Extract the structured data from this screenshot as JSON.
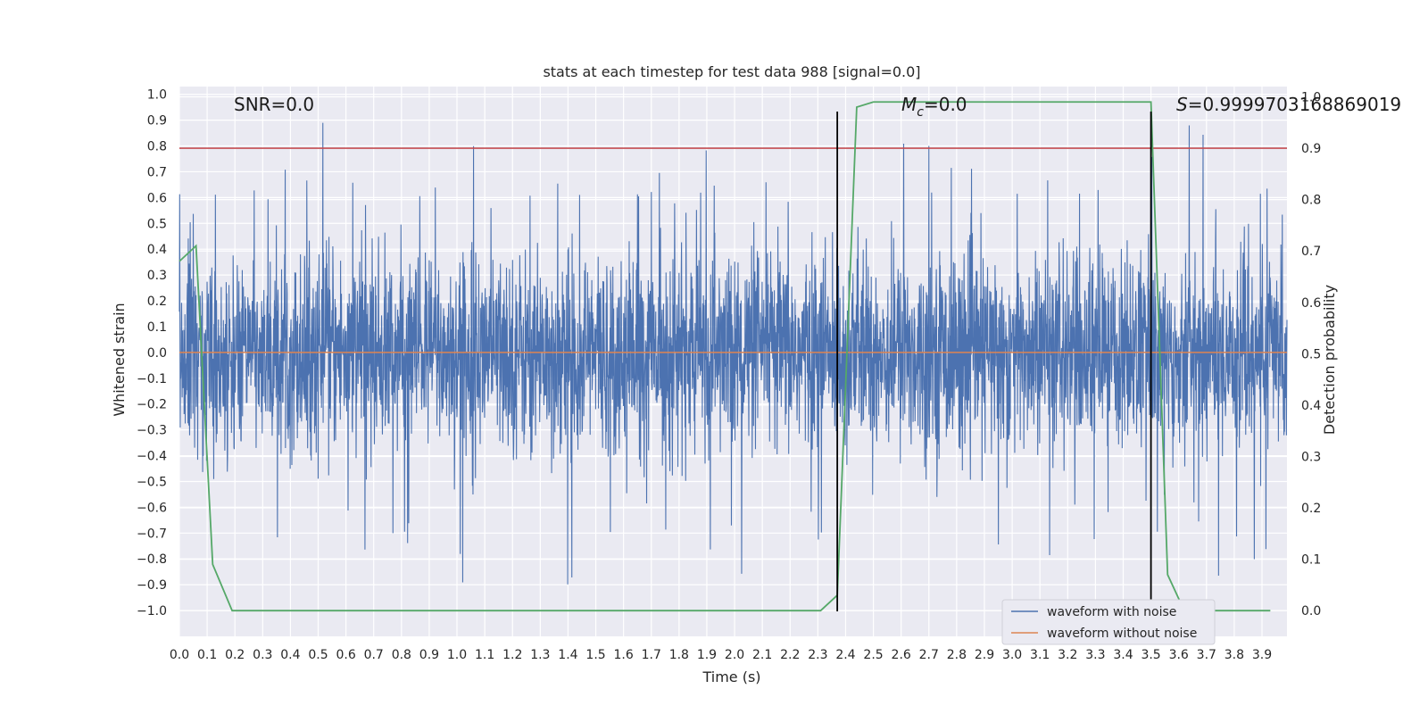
{
  "chart_data": {
    "type": "line",
    "title": "stats at each timestep for test data 988 [signal=0.0]",
    "xlabel": "Time (s)",
    "ylabel": "Whitened strain",
    "y2label": "Detection probability",
    "xlim": [
      0.0,
      3.99
    ],
    "ylim": [
      -1.1,
      1.03
    ],
    "y2lim": [
      -0.05,
      1.02
    ],
    "x_ticks": [
      "0.0",
      "0.1",
      "0.2",
      "0.3",
      "0.4",
      "0.5",
      "0.6",
      "0.7",
      "0.8",
      "0.9",
      "1.0",
      "1.1",
      "1.2",
      "1.3",
      "1.4",
      "1.5",
      "1.6",
      "1.7",
      "1.8",
      "1.9",
      "2.0",
      "2.1",
      "2.2",
      "2.3",
      "2.4",
      "2.5",
      "2.6",
      "2.7",
      "2.8",
      "2.9",
      "3.0",
      "3.1",
      "3.2",
      "3.3",
      "3.4",
      "3.5",
      "3.6",
      "3.7",
      "3.8",
      "3.9"
    ],
    "y_ticks": [
      "1.0",
      "0.9",
      "0.8",
      "0.7",
      "0.6",
      "0.5",
      "0.4",
      "0.3",
      "0.2",
      "0.1",
      "0.0",
      "−0.1",
      "−0.2",
      "−0.3",
      "−0.4",
      "−0.5",
      "−0.6",
      "−0.7",
      "−0.8",
      "−0.9",
      "−1.0"
    ],
    "y2_ticks": [
      "1.0",
      "0.9",
      "0.8",
      "0.7",
      "0.6",
      "0.5",
      "0.4",
      "0.3",
      "0.2",
      "0.1",
      "0.0"
    ],
    "annotations": {
      "snr": "SNR=0.0",
      "mc_symbol": "M",
      "mc_sub": "c",
      "mc_value": "=0.0",
      "s_symbol": "S",
      "s_value": "=0.9999703168869019"
    },
    "threshold_line": {
      "axis": "right",
      "value": 0.9,
      "color": "#c44e52"
    },
    "zero_line": {
      "axis": "left",
      "value": 0.0,
      "color": "#dd8452"
    },
    "vertical_lines": [
      2.37,
      3.5
    ],
    "series": [
      {
        "name": "waveform with noise",
        "color": "#4c72b0",
        "axis": "left",
        "style": "dense-noise",
        "amplitude": 0.3,
        "x_start": 0.0,
        "x_end": 3.99
      },
      {
        "name": "waveform without noise",
        "color": "#dd8452",
        "axis": "left",
        "x": [
          0.0,
          3.99
        ],
        "y": [
          0.0,
          0.0
        ]
      },
      {
        "name": "",
        "color": "#55a868",
        "axis": "right",
        "x": [
          0.0,
          0.06,
          0.12,
          0.19,
          0.25,
          0.31,
          0.37,
          0.44,
          0.5,
          0.56,
          0.62,
          0.69,
          0.75,
          0.81,
          0.87,
          0.94,
          1.0,
          1.06,
          1.12,
          1.19,
          1.25,
          1.31,
          1.37,
          1.44,
          1.5,
          1.56,
          1.62,
          1.69,
          1.75,
          1.81,
          1.87,
          1.94,
          2.0,
          2.06,
          2.12,
          2.19,
          2.25,
          2.31,
          2.37,
          2.44,
          2.5,
          2.56,
          2.62,
          2.69,
          2.75,
          2.81,
          2.87,
          2.94,
          3.0,
          3.06,
          3.12,
          3.19,
          3.25,
          3.31,
          3.37,
          3.44,
          3.5,
          3.56,
          3.62,
          3.69,
          3.75,
          3.81,
          3.87,
          3.93
        ],
        "y": [
          0.68,
          0.71,
          0.09,
          0.0,
          0.0,
          0.0,
          0.0,
          0.0,
          0.0,
          0.0,
          0.0,
          0.0,
          0.0,
          0.0,
          0.0,
          0.0,
          0.0,
          0.0,
          0.0,
          0.0,
          0.0,
          0.0,
          0.0,
          0.0,
          0.0,
          0.0,
          0.0,
          0.0,
          0.0,
          0.0,
          0.0,
          0.0,
          0.0,
          0.0,
          0.0,
          0.0,
          0.0,
          0.0,
          0.03,
          0.98,
          0.99,
          0.99,
          0.99,
          0.99,
          0.99,
          0.99,
          0.99,
          0.99,
          0.99,
          0.99,
          0.99,
          0.99,
          0.99,
          0.99,
          0.99,
          0.99,
          0.99,
          0.07,
          0.0,
          0.0,
          0.0,
          0.0,
          0.0,
          0.0
        ]
      }
    ],
    "legend": {
      "placement": "bottom-right",
      "entries": [
        "waveform with noise",
        "waveform without noise"
      ]
    },
    "grid": true,
    "background": "#eaeaf2"
  }
}
